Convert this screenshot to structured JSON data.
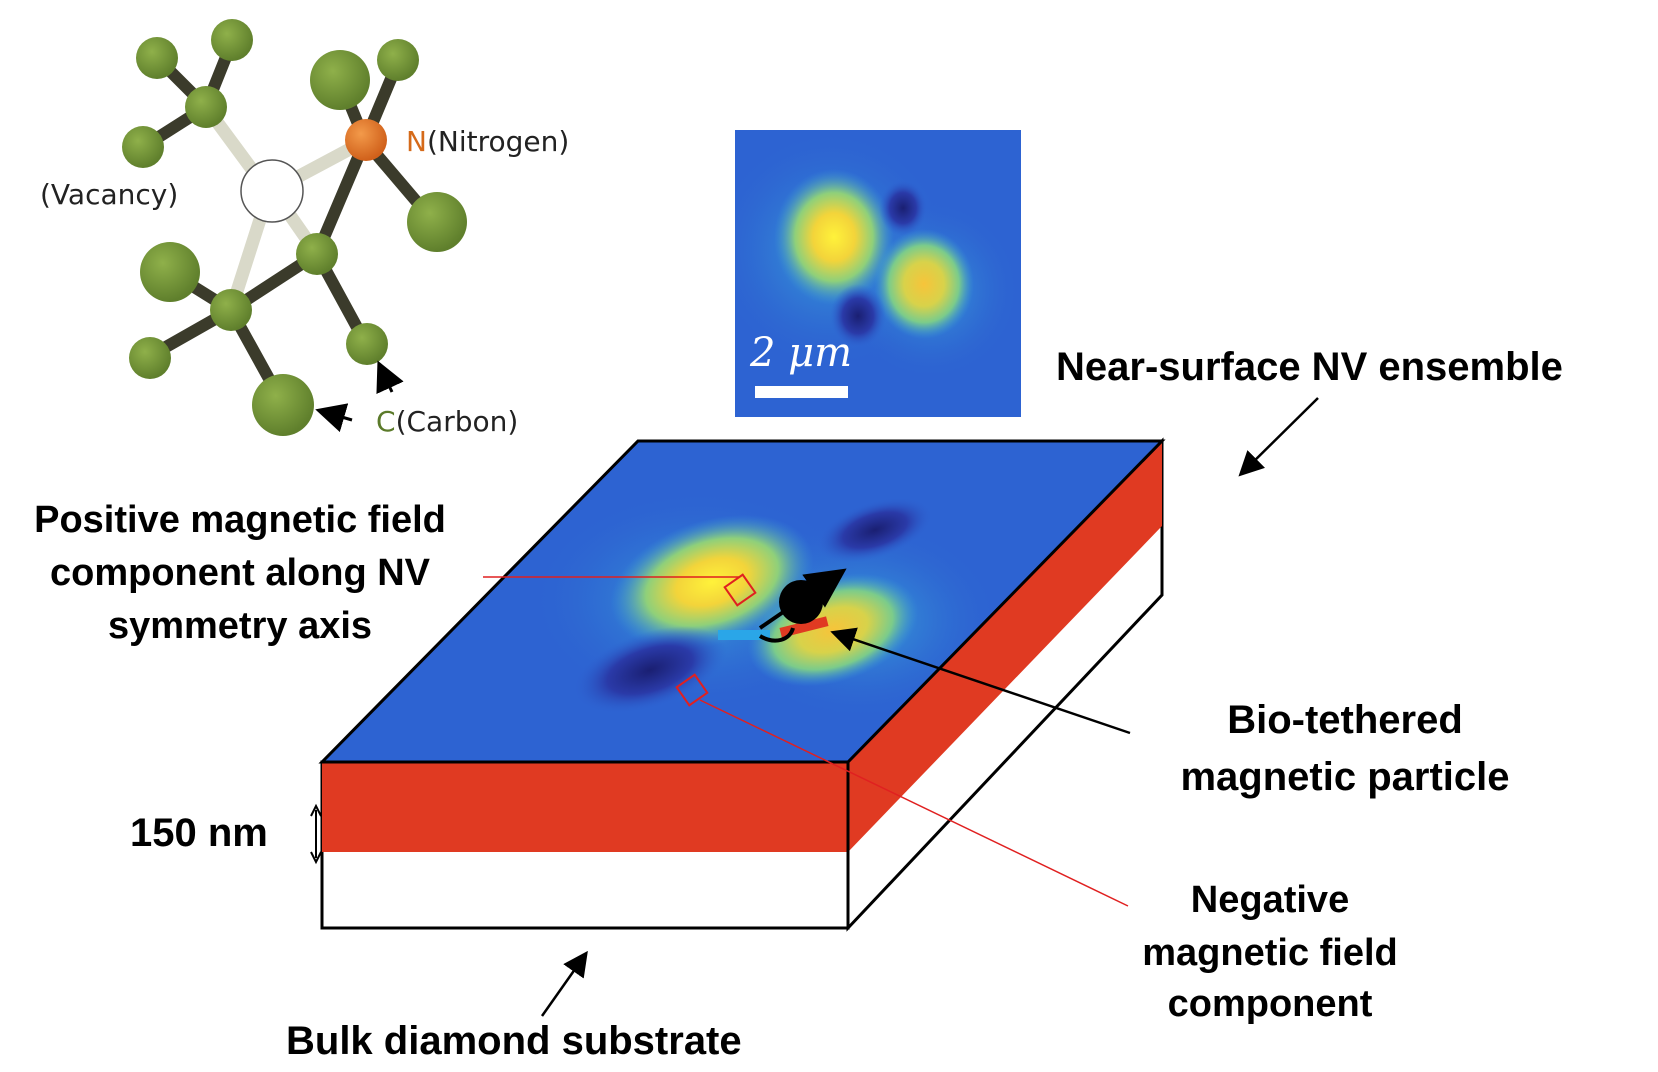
{
  "colors": {
    "carbon": "#6b8a32",
    "carbon_light": "#8fb04a",
    "bond_dark": "#3b3b2b",
    "bond_vacancy": "#d9d9c9",
    "nitrogen": "#e0741e",
    "nitrogen_text": "#d56a1a",
    "carbon_text": "#5b7a2a",
    "layer_red": "#e03a22",
    "field_blue": "#2d63d2",
    "field_yellow": "#f5e13a",
    "field_dark": "#1c1f7a",
    "particle": "#000000"
  },
  "molecule": {
    "nitrogen_symbol": "N",
    "nitrogen_name": "(Nitrogen)",
    "vacancy_label": "(Vacancy)",
    "carbon_symbol": "C",
    "carbon_name": "(Carbon)"
  },
  "inset": {
    "scale_label": "2 μm"
  },
  "labels": {
    "near_surface": "Near-surface NV ensemble",
    "positive_line1": "Positive magnetic field",
    "positive_line2": "component along NV",
    "positive_line3": "symmetry axis",
    "bio_line1": "Bio-tethered",
    "bio_line2": "magnetic particle",
    "negative_line1": "Negative",
    "negative_line2": "magnetic field",
    "negative_line3": "component",
    "thickness": "150 nm",
    "substrate": "Bulk diamond substrate"
  }
}
